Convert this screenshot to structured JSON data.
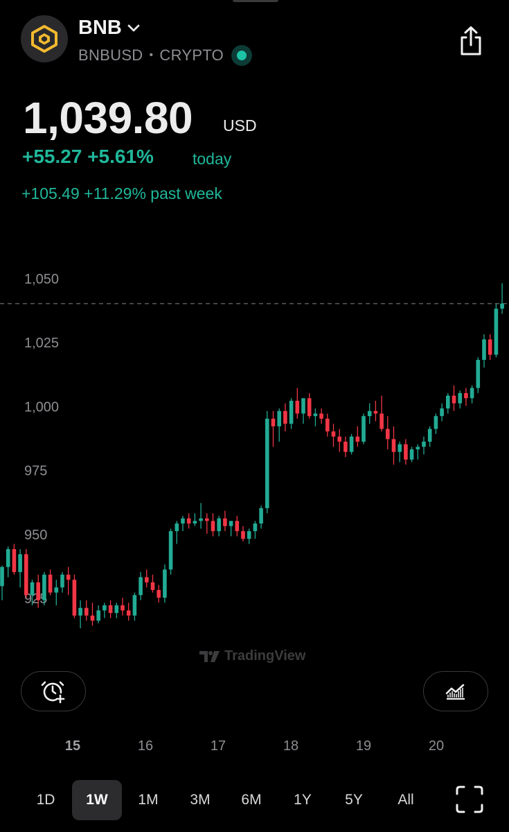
{
  "header": {
    "name": "BNB",
    "symbol": "BNBUSD",
    "separator": "•",
    "market": "CRYPTO",
    "live_status_color": "#1cc3a4",
    "logo_icon": "bnb-logo-icon",
    "share_icon": "share-icon"
  },
  "quote": {
    "price": "1,039.80",
    "currency": "USD",
    "change_today": "+55.27 +5.61%",
    "change_today_label": "today",
    "change_week": "+105.49 +11.29% past week"
  },
  "colors": {
    "up": "#22ab94",
    "down": "#f23645",
    "accent": "#20b79a"
  },
  "chart_data": {
    "type": "candlestick",
    "y_ticks": [
      "1,050",
      "1,025",
      "1,000",
      "975",
      "950",
      "925"
    ],
    "y_tick_values": [
      1050,
      1025,
      1000,
      975,
      950,
      925
    ],
    "ylim": [
      915,
      1053
    ],
    "x_ticks": [
      "15",
      "16",
      "17",
      "18",
      "19",
      "20"
    ],
    "current_price_line": 1040,
    "watermark": "TradingView",
    "candles": [
      [
        929.5,
        937.5,
        924,
        937
      ],
      [
        937,
        945,
        933,
        944
      ],
      [
        944,
        946,
        934,
        935
      ],
      [
        935,
        944,
        929,
        942
      ],
      [
        942,
        944,
        925,
        926
      ],
      [
        926,
        932,
        922,
        931
      ],
      [
        931,
        934,
        921,
        924
      ],
      [
        924,
        935,
        922,
        934
      ],
      [
        934,
        936,
        926,
        927
      ],
      [
        927,
        932,
        922,
        929
      ],
      [
        929,
        935,
        927,
        934
      ],
      [
        934,
        937,
        926,
        932
      ],
      [
        932,
        934,
        917,
        918
      ],
      [
        918,
        924,
        913,
        921
      ],
      [
        921,
        924,
        916,
        918
      ],
      [
        918,
        923,
        914,
        916
      ],
      [
        916,
        922,
        915,
        920
      ],
      [
        920,
        923,
        917,
        922
      ],
      [
        922,
        924,
        917,
        919
      ],
      [
        919,
        923,
        917,
        922
      ],
      [
        922,
        925,
        918,
        920
      ],
      [
        920,
        923,
        916,
        918
      ],
      [
        918,
        927,
        916,
        926
      ],
      [
        926,
        935,
        924,
        933
      ],
      [
        933,
        936,
        929,
        931
      ],
      [
        931,
        934,
        927,
        928
      ],
      [
        928,
        930,
        923,
        925
      ],
      [
        925,
        938,
        923,
        936
      ],
      [
        936,
        952,
        934,
        951
      ],
      [
        951,
        955,
        946,
        954
      ],
      [
        954,
        957,
        951,
        956
      ],
      [
        956,
        958,
        952,
        954
      ],
      [
        954,
        958,
        953,
        955
      ],
      [
        955,
        962,
        952,
        956
      ],
      [
        956,
        958,
        950,
        955
      ],
      [
        955,
        958,
        949,
        951
      ],
      [
        951,
        957,
        949,
        956
      ],
      [
        956,
        959,
        951,
        953
      ],
      [
        953,
        955,
        949,
        955
      ],
      [
        955,
        957,
        949,
        951
      ],
      [
        951,
        953,
        947,
        948
      ],
      [
        948,
        952,
        946,
        951
      ],
      [
        951,
        955,
        948,
        954
      ],
      [
        954,
        961,
        952,
        960
      ],
      [
        960,
        998,
        958,
        995
      ],
      [
        995,
        998,
        984,
        992
      ],
      [
        992,
        999,
        986,
        998
      ],
      [
        998,
        1001,
        990,
        993
      ],
      [
        993,
        1003,
        991,
        1002
      ],
      [
        1002,
        1007,
        995,
        997
      ],
      [
        997,
        1003,
        993,
        1003
      ],
      [
        1003,
        1005,
        995,
        996
      ],
      [
        996,
        999,
        992,
        997
      ],
      [
        997,
        999,
        993,
        995
      ],
      [
        995,
        997,
        988,
        990
      ],
      [
        990,
        993,
        984,
        988
      ],
      [
        988,
        991,
        982,
        986
      ],
      [
        986,
        988,
        980,
        982
      ],
      [
        982,
        989,
        981,
        988
      ],
      [
        988,
        992,
        984,
        986
      ],
      [
        986,
        997,
        985,
        996
      ],
      [
        996,
        1001,
        993,
        998
      ],
      [
        998,
        1002,
        994,
        997
      ],
      [
        997,
        1004,
        990,
        991
      ],
      [
        991,
        996,
        983,
        987
      ],
      [
        987,
        992,
        977,
        982
      ],
      [
        982,
        986,
        978,
        985
      ],
      [
        985,
        987,
        977,
        979
      ],
      [
        979,
        984,
        978,
        983
      ],
      [
        983,
        985,
        979,
        984
      ],
      [
        984,
        988,
        981,
        986
      ],
      [
        986,
        992,
        984,
        991
      ],
      [
        991,
        997,
        989,
        996
      ],
      [
        996,
        1001,
        994,
        999
      ],
      [
        999,
        1005,
        997,
        1004
      ],
      [
        1004,
        1008,
        998,
        1001
      ],
      [
        1001,
        1006,
        999,
        1005
      ],
      [
        1005,
        1007,
        1000,
        1003
      ],
      [
        1003,
        1008,
        1001,
        1007
      ],
      [
        1007,
        1019,
        1005,
        1018
      ],
      [
        1018,
        1028,
        1015,
        1026
      ],
      [
        1026,
        1028,
        1018,
        1020
      ],
      [
        1020,
        1040,
        1019,
        1038
      ],
      [
        1038,
        1048,
        1036,
        1040
      ]
    ]
  },
  "buttons": {
    "alert_icon": "alarm-plus-icon",
    "indicator_icon": "chart-indicator-icon",
    "fullscreen_icon": "fullscreen-icon"
  },
  "timeframes": [
    "1D",
    "1W",
    "1M",
    "3M",
    "6M",
    "1Y",
    "5Y",
    "All"
  ],
  "active_timeframe": "1W"
}
